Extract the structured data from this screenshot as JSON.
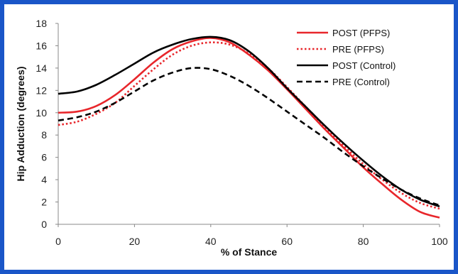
{
  "chart_data": {
    "type": "line",
    "title": "",
    "xlabel": "% of Stance",
    "ylabel": "Hip Adduction (degrees)",
    "xlim": [
      0,
      100
    ],
    "ylim": [
      0,
      18
    ],
    "xticks": [
      0,
      20,
      40,
      60,
      80,
      100
    ],
    "yticks": [
      0,
      2,
      4,
      6,
      8,
      10,
      12,
      14,
      16,
      18
    ],
    "grid": false,
    "legend_position": "top-right",
    "x": [
      0,
      5,
      10,
      15,
      20,
      25,
      30,
      35,
      40,
      45,
      50,
      55,
      60,
      65,
      70,
      75,
      80,
      85,
      90,
      95,
      100
    ],
    "series": [
      {
        "name": "POST (PFPS)",
        "color": "#e8262b",
        "dash": "solid",
        "values": [
          10.0,
          10.1,
          10.6,
          11.6,
          13.0,
          14.5,
          15.7,
          16.4,
          16.7,
          16.3,
          15.2,
          13.8,
          12.1,
          10.3,
          8.5,
          6.8,
          5.1,
          3.6,
          2.2,
          1.1,
          0.6
        ]
      },
      {
        "name": "PRE (PFPS)",
        "color": "#e8262b",
        "dash": "dotted",
        "values": [
          8.9,
          9.2,
          9.9,
          10.9,
          12.4,
          13.9,
          15.2,
          16.0,
          16.3,
          16.1,
          15.3,
          14.0,
          12.3,
          10.5,
          8.7,
          7.0,
          5.4,
          4.0,
          2.8,
          1.9,
          1.4
        ]
      },
      {
        "name": "POST (Control)",
        "color": "#000000",
        "dash": "solid",
        "values": [
          11.7,
          11.9,
          12.5,
          13.4,
          14.4,
          15.4,
          16.1,
          16.6,
          16.8,
          16.5,
          15.5,
          14.0,
          12.2,
          10.5,
          8.8,
          7.2,
          5.7,
          4.3,
          3.1,
          2.2,
          1.6
        ]
      },
      {
        "name": "PRE (Control)",
        "color": "#000000",
        "dash": "dashed",
        "values": [
          9.3,
          9.6,
          10.1,
          10.9,
          11.9,
          12.9,
          13.6,
          14.0,
          13.9,
          13.3,
          12.4,
          11.3,
          10.1,
          8.9,
          7.7,
          6.4,
          5.2,
          4.1,
          3.1,
          2.3,
          1.7
        ]
      }
    ]
  }
}
